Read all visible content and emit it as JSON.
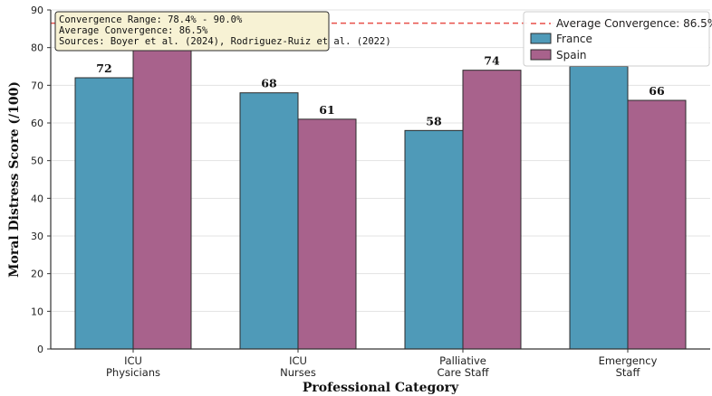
{
  "chart_data": {
    "type": "bar",
    "title": "",
    "xlabel": "Professional Category",
    "ylabel": "Moral Distress Score (/100)",
    "categories": [
      [
        "ICU",
        "Physicians"
      ],
      [
        "ICU",
        "Nurses"
      ],
      [
        "Palliative",
        "Care Staff"
      ],
      [
        "Emergency",
        "Staff"
      ]
    ],
    "series": [
      {
        "name": "France",
        "values": [
          72,
          68,
          58,
          75
        ],
        "color": "#4f9ab8",
        "labels": [
          "72",
          "68",
          "58",
          ""
        ]
      },
      {
        "name": "Spain",
        "values": [
          80,
          61,
          74,
          66
        ],
        "color": "#a8628c",
        "labels": [
          "",
          "61",
          "74",
          "66"
        ]
      }
    ],
    "ylim": [
      0,
      90
    ],
    "yticks": [
      0,
      10,
      20,
      30,
      40,
      50,
      60,
      70,
      80,
      90
    ],
    "grid": true,
    "legend_position": "top-right",
    "reference_line": {
      "value": 86.5,
      "label": "Average Convergence: 86.5%",
      "color": "#e8504a",
      "style": "dashed"
    },
    "annotation": [
      "Convergence Range: 78.4% - 90.0%",
      "Average Convergence: 86.5%",
      "Sources: Boyer et al. (2024), Rodriguez-Ruiz et al. (2022)"
    ]
  }
}
